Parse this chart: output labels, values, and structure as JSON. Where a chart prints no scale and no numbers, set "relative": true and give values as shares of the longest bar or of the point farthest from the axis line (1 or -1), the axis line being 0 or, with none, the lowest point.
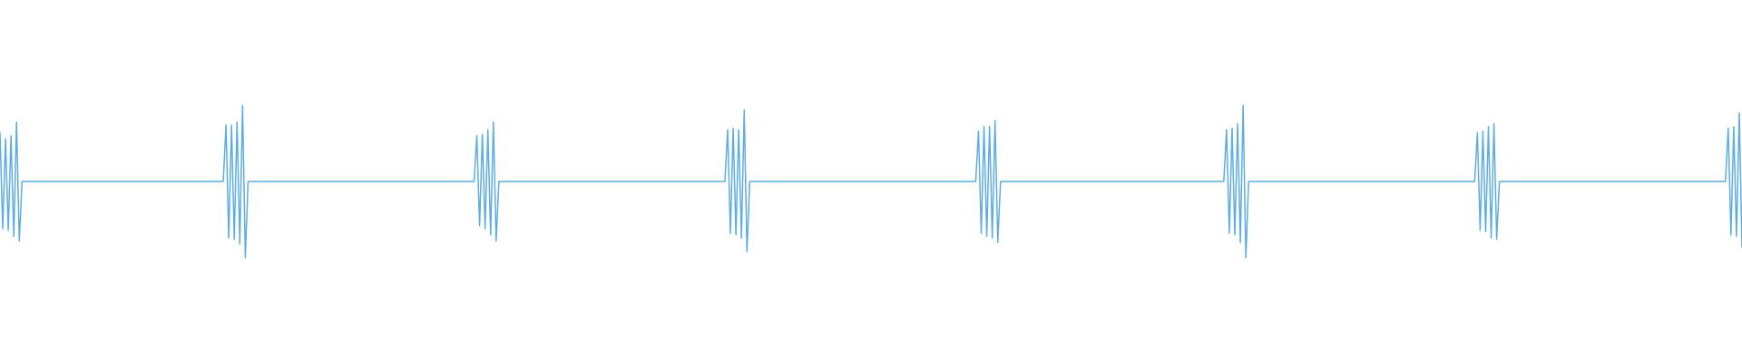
{
  "chart_data": {
    "type": "line",
    "relative": true,
    "color": "#5dade2",
    "line_style": "solid",
    "categories": [
      null,
      null,
      null,
      null,
      null,
      null,
      null,
      null,
      null,
      null,
      null,
      null,
      null,
      null,
      null,
      null,
      null,
      null,
      null,
      null,
      null,
      null,
      null,
      null,
      null,
      null,
      null,
      null,
      null,
      null,
      null,
      null,
      null,
      null,
      null,
      null,
      null,
      null,
      null,
      null,
      null,
      null,
      null,
      null,
      null,
      null,
      null,
      null,
      null,
      null,
      null,
      null,
      null,
      null,
      null,
      null,
      null,
      null,
      null,
      null,
      null,
      null,
      null,
      null,
      null,
      null,
      null,
      null,
      null,
      null,
      null,
      null,
      null,
      null,
      null,
      null,
      null,
      null,
      null,
      null,
      null,
      null,
      null,
      null,
      null,
      null,
      null,
      null,
      null,
      null,
      null,
      null,
      null,
      null,
      null,
      null,
      null,
      null,
      null,
      null,
      null,
      null,
      null,
      null,
      null,
      null,
      null,
      null,
      null,
      null,
      null,
      null,
      null,
      null,
      null,
      null,
      null,
      null,
      null,
      null,
      null,
      null,
      null,
      null,
      null,
      null,
      null,
      null,
      null,
      null,
      null,
      null,
      null,
      null,
      null,
      null,
      null,
      null,
      null,
      null,
      null,
      null,
      null,
      null,
      null,
      null,
      null,
      null,
      null,
      null,
      null,
      null,
      null,
      null,
      null,
      null,
      null,
      null,
      null,
      null,
      null,
      null,
      null,
      null,
      null,
      null,
      null,
      null,
      null,
      null,
      null,
      null,
      null,
      null,
      null,
      null,
      null,
      null,
      null,
      null,
      null,
      null,
      null,
      null,
      null,
      null,
      null,
      null,
      null,
      null,
      null,
      null,
      null,
      null,
      null,
      null,
      null,
      null,
      null,
      null,
      null,
      null,
      null,
      null,
      null,
      null,
      null,
      null,
      null,
      null,
      null,
      null,
      null,
      null,
      null,
      null,
      null,
      null,
      null,
      null,
      null,
      null,
      null,
      null,
      null,
      null,
      null,
      null,
      null,
      null,
      null,
      null,
      null,
      null,
      null,
      null,
      null,
      null,
      null,
      null,
      null,
      null,
      null,
      null,
      null,
      null,
      null,
      null,
      null,
      null,
      null,
      null,
      null,
      null,
      null,
      null,
      null,
      null,
      null,
      null,
      null,
      null,
      null,
      null,
      null,
      null,
      null,
      null,
      null,
      null,
      null,
      null,
      null,
      null,
      null,
      null,
      null,
      null,
      null,
      null,
      null,
      null,
      null,
      null,
      null,
      null,
      null,
      null,
      null,
      null,
      null,
      null,
      null,
      null,
      null,
      null,
      null,
      null,
      null,
      null,
      null,
      null,
      null,
      null,
      null,
      null,
      null,
      null,
      null,
      null,
      null,
      null,
      null,
      null,
      null,
      null,
      null,
      null,
      null,
      null,
      null,
      null,
      null,
      null,
      null,
      null,
      null,
      null,
      null,
      null,
      null,
      null,
      null,
      null,
      null,
      null,
      null,
      null,
      null,
      null,
      null,
      null,
      null,
      null,
      null,
      null,
      null,
      null,
      null,
      null,
      null,
      null,
      null,
      null,
      null,
      null,
      null,
      null,
      null,
      null,
      null,
      null,
      null,
      null,
      null,
      null,
      null,
      null,
      null,
      null,
      null,
      null,
      null,
      null,
      null,
      null,
      null,
      null,
      null,
      null,
      null,
      null,
      null,
      null,
      null,
      null,
      null,
      null,
      null,
      null,
      null,
      null,
      null,
      null,
      null,
      null,
      null,
      null,
      null,
      null,
      null,
      null,
      null,
      null,
      null,
      null,
      null,
      null,
      null,
      null,
      null,
      null,
      null,
      null,
      null,
      null,
      null,
      null,
      null,
      null,
      null,
      null,
      null,
      null,
      null,
      null,
      null,
      null,
      null,
      null,
      null,
      null,
      null,
      null,
      null,
      null,
      null,
      null,
      null,
      null,
      null,
      null,
      null,
      null,
      null,
      null,
      null,
      null,
      null,
      null,
      null,
      null,
      null,
      null,
      null,
      null,
      null,
      null,
      null,
      null,
      null,
      null,
      null,
      null,
      null,
      null,
      null,
      null,
      null,
      null,
      null,
      null,
      null,
      null,
      null,
      null,
      null,
      null,
      null,
      null,
      null,
      null,
      null,
      null,
      null,
      null,
      null,
      null,
      null,
      null,
      null,
      null,
      null,
      null,
      null,
      null,
      null,
      null,
      null,
      null,
      null,
      null,
      null,
      null,
      null,
      null,
      null,
      null,
      null,
      null,
      null,
      null,
      null,
      null,
      null,
      null,
      null,
      null,
      null,
      null,
      null,
      null,
      null,
      null,
      null,
      null,
      null,
      null,
      null,
      null,
      null,
      null,
      null,
      null,
      null,
      null,
      null,
      null,
      null,
      null,
      null,
      null,
      null,
      null,
      null,
      null,
      null,
      null,
      null,
      null,
      null,
      null,
      null,
      null,
      null,
      null,
      null,
      null,
      null,
      null,
      null,
      null,
      null,
      null,
      null,
      null,
      null,
      null,
      null,
      null,
      null,
      null,
      null,
      null,
      null,
      null,
      null,
      null,
      null,
      null,
      null,
      null,
      null,
      null,
      null,
      null,
      null,
      null,
      null,
      null,
      null,
      null,
      null,
      null,
      null,
      null,
      null,
      null,
      null,
      null,
      null,
      null,
      null,
      null,
      null,
      null,
      null,
      null,
      null,
      null,
      null,
      null,
      null,
      null,
      null,
      null,
      null,
      null,
      null,
      null,
      null,
      null,
      null,
      null,
      null,
      null,
      null,
      null,
      null,
      null,
      null,
      null,
      null
    ],
    "values": [
      0.82,
      0.19,
      0.78,
      0.18,
      0.8,
      0.14,
      0.89,
      0.11,
      0.5,
      0.5,
      0.5,
      0.5,
      0.5,
      0.5,
      0.5,
      0.5,
      0.5,
      0.5,
      0.5,
      0.5,
      0.5,
      0.5,
      0.5,
      0.5,
      0.5,
      0.5,
      0.5,
      0.5,
      0.5,
      0.5,
      0.5,
      0.5,
      0.5,
      0.5,
      0.5,
      0.5,
      0.5,
      0.5,
      0.5,
      0.5,
      0.5,
      0.5,
      0.5,
      0.5,
      0.5,
      0.5,
      0.5,
      0.5,
      0.5,
      0.5,
      0.5,
      0.5,
      0.5,
      0.5,
      0.5,
      0.5,
      0.5,
      0.5,
      0.5,
      0.5,
      0.5,
      0.5,
      0.5,
      0.5,
      0.5,
      0.5,
      0.5,
      0.5,
      0.5,
      0.5,
      0.5,
      0.5,
      0.5,
      0.5,
      0.5,
      0.5,
      0.5,
      0.5,
      0.5,
      0.5,
      0.5,
      0.5,
      0.87,
      0.13,
      0.87,
      0.12,
      0.89,
      0.09,
      1.0,
      0.0,
      0.5,
      0.5,
      0.5,
      0.5,
      0.5,
      0.5,
      0.5,
      0.5,
      0.5,
      0.5,
      0.5,
      0.5,
      0.5,
      0.5,
      0.5,
      0.5,
      0.5,
      0.5,
      0.5,
      0.5,
      0.5,
      0.5,
      0.5,
      0.5,
      0.5,
      0.5,
      0.5,
      0.5,
      0.5,
      0.5,
      0.5,
      0.5,
      0.5,
      0.5,
      0.5,
      0.5,
      0.5,
      0.5,
      0.5,
      0.5,
      0.5,
      0.5,
      0.5,
      0.5,
      0.5,
      0.5,
      0.5,
      0.5,
      0.5,
      0.5,
      0.5,
      0.5,
      0.5,
      0.5,
      0.5,
      0.5,
      0.5,
      0.5,
      0.5,
      0.5,
      0.5,
      0.5,
      0.5,
      0.5,
      0.5,
      0.5,
      0.5,
      0.5,
      0.5,
      0.5,
      0.5,
      0.5,
      0.5,
      0.5,
      0.5,
      0.5,
      0.5,
      0.5,
      0.5,
      0.5,
      0.5,
      0.5,
      0.5,
      0.8,
      0.21,
      0.81,
      0.19,
      0.84,
      0.15,
      0.89,
      0.11,
      0.5,
      0.5,
      0.5,
      0.5,
      0.5,
      0.5,
      0.5,
      0.5,
      0.5,
      0.5,
      0.5,
      0.5,
      0.5,
      0.5,
      0.5,
      0.5,
      0.5,
      0.5,
      0.5,
      0.5,
      0.5,
      0.5,
      0.5,
      0.5,
      0.5,
      0.5,
      0.5,
      0.5,
      0.5,
      0.5,
      0.5,
      0.5,
      0.5,
      0.5,
      0.5,
      0.5,
      0.5,
      0.5,
      0.5,
      0.5,
      0.5,
      0.5,
      0.5,
      0.5,
      0.5,
      0.5,
      0.5,
      0.5,
      0.5,
      0.5,
      0.5,
      0.5,
      0.5,
      0.5,
      0.5,
      0.5,
      0.5,
      0.5,
      0.5,
      0.5,
      0.5,
      0.5,
      0.5,
      0.5,
      0.5,
      0.5,
      0.5,
      0.5,
      0.5,
      0.5,
      0.5,
      0.5,
      0.5,
      0.5,
      0.5,
      0.5,
      0.5,
      0.5,
      0.5,
      0.5,
      0.5,
      0.5,
      0.5,
      0.84,
      0.16,
      0.85,
      0.15,
      0.84,
      0.13,
      0.97,
      0.04,
      0.5,
      0.5,
      0.5,
      0.5,
      0.5,
      0.5,
      0.5,
      0.5,
      0.5,
      0.5,
      0.5,
      0.5,
      0.5,
      0.5,
      0.5,
      0.5,
      0.5,
      0.5,
      0.5,
      0.5,
      0.5,
      0.5,
      0.5,
      0.5,
      0.5,
      0.5,
      0.5,
      0.5,
      0.5,
      0.5,
      0.5,
      0.5,
      0.5,
      0.5,
      0.5,
      0.5,
      0.5,
      0.5,
      0.5,
      0.5,
      0.5,
      0.5,
      0.5,
      0.5,
      0.5,
      0.5,
      0.5,
      0.5,
      0.5,
      0.5,
      0.5,
      0.5,
      0.5,
      0.5,
      0.5,
      0.5,
      0.5,
      0.5,
      0.5,
      0.5,
      0.5,
      0.5,
      0.5,
      0.5,
      0.5,
      0.5,
      0.5,
      0.5,
      0.5,
      0.5,
      0.5,
      0.5,
      0.5,
      0.5,
      0.5,
      0.5,
      0.5,
      0.5,
      0.5,
      0.5,
      0.5,
      0.5,
      0.5,
      0.83,
      0.16,
      0.86,
      0.14,
      0.86,
      0.13,
      0.9,
      0.1,
      0.5,
      0.5,
      0.5,
      0.5,
      0.5,
      0.5,
      0.5,
      0.5,
      0.5,
      0.5,
      0.5,
      0.5,
      0.5,
      0.5,
      0.5,
      0.5,
      0.5,
      0.5,
      0.5,
      0.5,
      0.5,
      0.5,
      0.5,
      0.5,
      0.5,
      0.5,
      0.5,
      0.5,
      0.5,
      0.5,
      0.5,
      0.5,
      0.5,
      0.5,
      0.5,
      0.5,
      0.5,
      0.5,
      0.5,
      0.5,
      0.5,
      0.5,
      0.5,
      0.5,
      0.5,
      0.5,
      0.5,
      0.5,
      0.5,
      0.5,
      0.5,
      0.5,
      0.5,
      0.5,
      0.5,
      0.5,
      0.5,
      0.5,
      0.5,
      0.5,
      0.5,
      0.5,
      0.5,
      0.5,
      0.5,
      0.5,
      0.5,
      0.5,
      0.5,
      0.5,
      0.5,
      0.5,
      0.5,
      0.5,
      0.5,
      0.5,
      0.5,
      0.5,
      0.5,
      0.5,
      0.5,
      0.5,
      0.84,
      0.16,
      0.85,
      0.15,
      0.88,
      0.1,
      1.0,
      0.0,
      0.5,
      0.5,
      0.5,
      0.5,
      0.5,
      0.5,
      0.5,
      0.5,
      0.5,
      0.5,
      0.5,
      0.5,
      0.5,
      0.5,
      0.5,
      0.5,
      0.5,
      0.5,
      0.5,
      0.5,
      0.5,
      0.5,
      0.5,
      0.5,
      0.5,
      0.5,
      0.5,
      0.5,
      0.5,
      0.5,
      0.5,
      0.5,
      0.5,
      0.5,
      0.5,
      0.5,
      0.5,
      0.5,
      0.5,
      0.5,
      0.5,
      0.5,
      0.5,
      0.5,
      0.5,
      0.5,
      0.5,
      0.5,
      0.5,
      0.5,
      0.5,
      0.5,
      0.5,
      0.5,
      0.5,
      0.5,
      0.5,
      0.5,
      0.5,
      0.5,
      0.5,
      0.5,
      0.5,
      0.5,
      0.5,
      0.5,
      0.5,
      0.5,
      0.5,
      0.5,
      0.5,
      0.5,
      0.5,
      0.5,
      0.5,
      0.5,
      0.5,
      0.5,
      0.5,
      0.5,
      0.5,
      0.5,
      0.5,
      0.82,
      0.18,
      0.83,
      0.17,
      0.86,
      0.13,
      0.88,
      0.12,
      0.5,
      0.5,
      0.5,
      0.5,
      0.5,
      0.5,
      0.5,
      0.5,
      0.5,
      0.5,
      0.5,
      0.5,
      0.5,
      0.5,
      0.5,
      0.5,
      0.5,
      0.5,
      0.5,
      0.5,
      0.5,
      0.5,
      0.5,
      0.5,
      0.5,
      0.5,
      0.5,
      0.5,
      0.5,
      0.5,
      0.5,
      0.5,
      0.5,
      0.5,
      0.5,
      0.5,
      0.5,
      0.5,
      0.5,
      0.5,
      0.5,
      0.5,
      0.5,
      0.5,
      0.5,
      0.5,
      0.5,
      0.5,
      0.5,
      0.5,
      0.5,
      0.5,
      0.5,
      0.5,
      0.5,
      0.5,
      0.5,
      0.5,
      0.5,
      0.5,
      0.5,
      0.5,
      0.5,
      0.5,
      0.5,
      0.5,
      0.5,
      0.5,
      0.5,
      0.5,
      0.5,
      0.5,
      0.5,
      0.5,
      0.5,
      0.5,
      0.5,
      0.5,
      0.5,
      0.5,
      0.5,
      0.5,
      0.5,
      0.85,
      0.15,
      0.86,
      0.14,
      0.95,
      0.07
    ]
  }
}
